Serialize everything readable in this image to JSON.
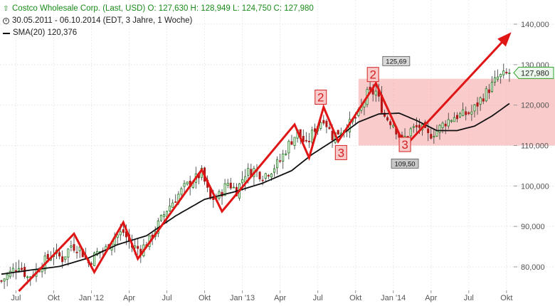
{
  "legend": {
    "title_line": "Costco Wholesale Corp. (Last, USD)  O: 127,630  H: 128,949  L: 124,750  C: 127,980",
    "range_line": "30.05.2011 - 06.10.2014 (EDT, 3 Jahre, 1 Woche)",
    "sma_line": "SMA(20)  120,376"
  },
  "chart_data": {
    "type": "candlestick",
    "y_ticks": [
      "140,000",
      "130,000",
      "120,000",
      "110,000",
      "100,000",
      "90,000",
      "80,000"
    ],
    "y_tick_values": [
      140,
      130,
      120,
      110,
      100,
      90,
      80
    ],
    "x_ticks": [
      "Jul",
      "Okt",
      "Jan '12",
      "Apr",
      "Jul",
      "Okt",
      "Jan '13",
      "Apr",
      "Jul",
      "Okt",
      "Jan '14",
      "Apr",
      "Jul",
      "Okt"
    ],
    "x_tick_weeks": [
      5,
      18,
      31,
      44,
      57,
      70,
      83,
      96,
      109,
      122,
      135,
      148,
      161,
      174
    ],
    "ylim": [
      75,
      142
    ],
    "weeks": 176,
    "last_price_label": "127,980",
    "last_price": 127.98,
    "annotations": [
      {
        "label": "125,69",
        "week": 136,
        "value": 125.69,
        "type": "high"
      },
      {
        "label": "109,50",
        "week": 139,
        "value": 109.5,
        "type": "low"
      }
    ],
    "waves": [
      {
        "label": "2",
        "week": 110,
        "value": 120.2
      },
      {
        "label": "3",
        "week": 117,
        "value": 106.5
      },
      {
        "label": "2",
        "week": 128,
        "value": 125.8
      },
      {
        "label": "3",
        "week": 139,
        "value": 108.5
      }
    ],
    "range_box": {
      "week_start": 123,
      "week_end": 176,
      "low": 110,
      "high": 126.5
    },
    "zigzag": [
      {
        "week": 6,
        "value": 74
      },
      {
        "week": 25,
        "value": 88.2
      },
      {
        "week": 32,
        "value": 78.7
      },
      {
        "week": 42,
        "value": 91
      },
      {
        "week": 47,
        "value": 82
      },
      {
        "week": 69,
        "value": 104
      },
      {
        "week": 76,
        "value": 93.7
      },
      {
        "week": 101,
        "value": 115.2
      },
      {
        "week": 106,
        "value": 107
      },
      {
        "week": 111,
        "value": 119.5
      },
      {
        "week": 116,
        "value": 111
      },
      {
        "week": 129,
        "value": 125.4
      },
      {
        "week": 139,
        "value": 109.8
      },
      {
        "week": 175,
        "value": 137.5
      }
    ],
    "sma_anchor": [
      [
        0,
        78.2
      ],
      [
        10,
        79.2
      ],
      [
        20,
        80.1
      ],
      [
        30,
        82.2
      ],
      [
        40,
        85.5
      ],
      [
        50,
        87.7
      ],
      [
        60,
        92.6
      ],
      [
        70,
        96.7
      ],
      [
        80,
        98.5
      ],
      [
        90,
        100.7
      ],
      [
        100,
        103.8
      ],
      [
        107,
        107.8
      ],
      [
        115,
        111.5
      ],
      [
        123,
        115.8
      ],
      [
        130,
        117.8
      ],
      [
        137,
        118
      ],
      [
        143,
        116.2
      ],
      [
        150,
        113.7
      ],
      [
        157,
        113.7
      ],
      [
        163,
        114.8
      ],
      [
        169,
        117.3
      ],
      [
        175,
        120.38
      ]
    ],
    "price_anchor": [
      [
        0,
        76.5
      ],
      [
        3,
        78.5
      ],
      [
        6,
        80.6
      ],
      [
        9,
        77.4
      ],
      [
        12,
        79
      ],
      [
        15,
        81.5
      ],
      [
        18,
        83.5
      ],
      [
        21,
        82
      ],
      [
        24,
        85.3
      ],
      [
        27,
        84.5
      ],
      [
        30,
        81
      ],
      [
        33,
        83.5
      ],
      [
        36,
        84.5
      ],
      [
        39,
        87.5
      ],
      [
        42,
        88.6
      ],
      [
        45,
        85
      ],
      [
        48,
        84.3
      ],
      [
        51,
        86.5
      ],
      [
        54,
        90.5
      ],
      [
        57,
        94.2
      ],
      [
        60,
        97
      ],
      [
        63,
        99.6
      ],
      [
        66,
        101.3
      ],
      [
        69,
        103.2
      ],
      [
        72,
        96.6
      ],
      [
        75,
        97.6
      ],
      [
        78,
        100.8
      ],
      [
        81,
        98.8
      ],
      [
        84,
        103.2
      ],
      [
        87,
        104
      ],
      [
        90,
        102.5
      ],
      [
        93,
        104
      ],
      [
        96,
        106.3
      ],
      [
        99,
        110.3
      ],
      [
        102,
        113.3
      ],
      [
        105,
        110
      ],
      [
        108,
        114.3
      ],
      [
        111,
        116.8
      ],
      [
        114,
        112.3
      ],
      [
        117,
        113.8
      ],
      [
        120,
        115.3
      ],
      [
        123,
        117.7
      ],
      [
        126,
        122.7
      ],
      [
        129,
        123.3
      ],
      [
        132,
        117.3
      ],
      [
        135,
        115.4
      ],
      [
        138,
        111
      ],
      [
        141,
        113.8
      ],
      [
        144,
        114.7
      ],
      [
        147,
        112.4
      ],
      [
        150,
        113.7
      ],
      [
        153,
        115.8
      ],
      [
        156,
        117.2
      ],
      [
        159,
        117.6
      ],
      [
        162,
        118.3
      ],
      [
        165,
        121.3
      ],
      [
        168,
        124
      ],
      [
        171,
        126.8
      ],
      [
        174,
        127.6
      ],
      [
        175,
        127.98
      ]
    ]
  }
}
